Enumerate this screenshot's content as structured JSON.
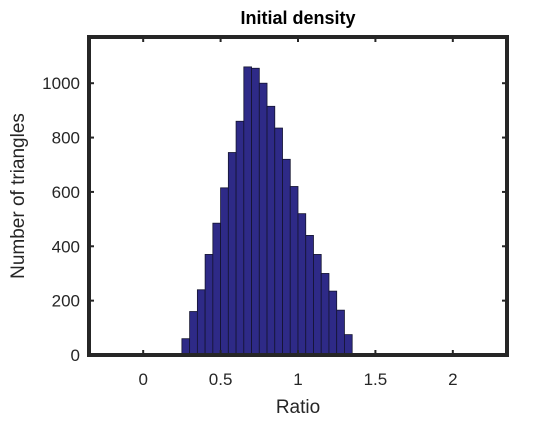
{
  "chart_data": {
    "type": "bar",
    "title": "Initial density",
    "xlabel": "Ratio",
    "ylabel": "Number of triangles",
    "xlim": [
      -0.35,
      2.35
    ],
    "ylim": [
      0,
      1170
    ],
    "xticks": [
      0,
      0.5,
      1,
      1.5,
      2
    ],
    "xtick_labels": [
      "0",
      "0.5",
      "1",
      "1.5",
      "2"
    ],
    "yticks": [
      0,
      200,
      400,
      600,
      800,
      1000
    ],
    "ytick_labels": [
      "0",
      "200",
      "400",
      "600",
      "800",
      "1000"
    ],
    "bin_width": 0.05,
    "bin_start": 0.25,
    "values": [
      60,
      160,
      240,
      370,
      485,
      615,
      745,
      860,
      1060,
      1055,
      1000,
      915,
      835,
      720,
      620,
      520,
      440,
      370,
      300,
      235,
      165,
      75
    ],
    "grid": false,
    "colors": {
      "bar_fill": "#2E2A87",
      "bar_edge": "#141430",
      "axes": "#262626",
      "text": "#262626"
    }
  }
}
